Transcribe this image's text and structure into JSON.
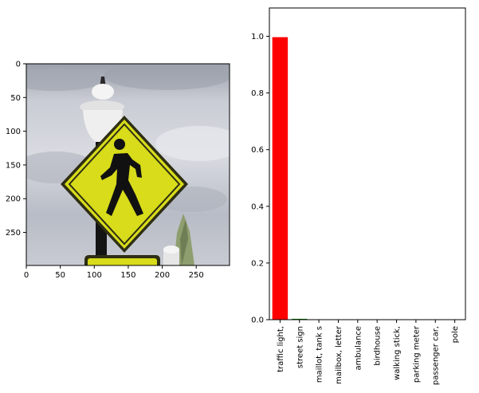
{
  "chart_data": [
    {
      "type": "image",
      "description_free": true,
      "x_ticks": [
        0,
        50,
        100,
        150,
        200,
        250
      ],
      "y_ticks": [
        0,
        50,
        100,
        150,
        200,
        250
      ],
      "xlim": [
        0,
        299
      ],
      "ylim": [
        299,
        0
      ],
      "colors": {
        "sky_light": "#e7e9ee",
        "sky_mid": "#bcc0cb",
        "sky_dark": "#8a8f9c",
        "sign_yellow": "#d8dc1a",
        "sign_border": "#2e2e14",
        "pedestrian": "#111111",
        "lamp_white": "#f2f2f2",
        "pole": "#141414",
        "tree": "#8f9e6e"
      }
    },
    {
      "type": "bar",
      "categories": [
        "traffic light,",
        "street sign",
        "maillot, tank s",
        "mailbox, letter",
        "ambulance",
        "birdhouse",
        "walking stick,",
        "parking meter",
        "passenger car,",
        "pole"
      ],
      "values": [
        0.997,
        0.003,
        0.0,
        0.0,
        0.0,
        0.0,
        0.0,
        0.0,
        0.0,
        0.0
      ],
      "bar_colors": [
        "#ff0000",
        "#008000",
        "#008000",
        "#008000",
        "#008000",
        "#008000",
        "#008000",
        "#008000",
        "#008000",
        "#008000"
      ],
      "y_ticks": [
        "0.0",
        "0.2",
        "0.4",
        "0.6",
        "0.8",
        "1.0"
      ],
      "ylim": [
        0,
        1.1
      ],
      "grid": false
    }
  ]
}
